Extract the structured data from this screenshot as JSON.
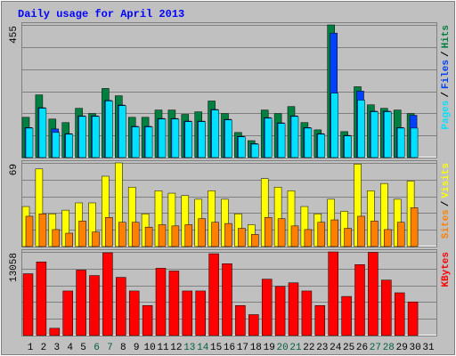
{
  "chart_data": [
    {
      "type": "bar",
      "title": "Daily usage for April 2013",
      "categories": [
        "1",
        "2",
        "3",
        "4",
        "5",
        "6",
        "7",
        "8",
        "9",
        "10",
        "11",
        "12",
        "13",
        "14",
        "15",
        "16",
        "17",
        "18",
        "19",
        "20",
        "21",
        "22",
        "23",
        "24",
        "25",
        "26",
        "27",
        "28",
        "29",
        "30",
        "31"
      ],
      "label_colors": [
        "#000000",
        "#000000",
        "#000000",
        "#000000",
        "#000000",
        "#006040",
        "#006040",
        "#000000",
        "#000000",
        "#000000",
        "#000000",
        "#000000",
        "#006040",
        "#006040",
        "#000000",
        "#000000",
        "#000000",
        "#000000",
        "#000000",
        "#006040",
        "#006040",
        "#000000",
        "#000000",
        "#000000",
        "#000000",
        "#000000",
        "#006040",
        "#006040",
        "#000000",
        "#000000",
        "#000000"
      ],
      "legend_separator": "/",
      "ylim": [
        0,
        455
      ],
      "yticks": [
        455
      ],
      "grid": true,
      "series": [
        {
          "name": "Hits",
          "color": "#008040",
          "values": [
            138,
            215,
            132,
            120,
            169,
            151,
            237,
            212,
            138,
            138,
            163,
            163,
            148,
            157,
            194,
            151,
            86,
            58,
            163,
            151,
            175,
            120,
            95,
            455,
            89,
            243,
            181,
            169,
            163,
            151,
            0
          ]
        },
        {
          "name": "Files",
          "color": "#0040ff",
          "values": [
            103,
            171,
            98,
            82,
            143,
            143,
            196,
            180,
            107,
            107,
            134,
            134,
            125,
            125,
            165,
            131,
            73,
            48,
            137,
            119,
            143,
            103,
            82,
            427,
            76,
            228,
            159,
            159,
            103,
            145,
            0
          ]
        },
        {
          "name": "Pages",
          "color": "#00e0ff",
          "values": [
            101,
            169,
            86,
            80,
            141,
            141,
            194,
            178,
            105,
            105,
            132,
            132,
            123,
            123,
            163,
            129,
            71,
            46,
            135,
            117,
            141,
            101,
            80,
            221,
            74,
            197,
            157,
            157,
            101,
            101,
            0
          ]
        }
      ]
    },
    {
      "type": "bar",
      "ylim": [
        0,
        69
      ],
      "yticks": [
        69
      ],
      "grid": true,
      "series": [
        {
          "name": "Visits",
          "color": "#ffff00",
          "values": [
            33,
            64,
            27,
            30,
            36,
            36,
            58,
            69,
            49,
            27,
            46,
            44,
            42,
            39,
            46,
            39,
            27,
            18,
            56,
            49,
            46,
            33,
            27,
            39,
            29,
            68,
            46,
            52,
            39,
            54,
            0
          ]
        },
        {
          "name": "Sites",
          "color": "#ff8000",
          "values": [
            25,
            27,
            14,
            11,
            21,
            12,
            24,
            20,
            20,
            16,
            18,
            17,
            18,
            23,
            20,
            19,
            15,
            10,
            24,
            23,
            17,
            14,
            20,
            22,
            15,
            25,
            21,
            14,
            20,
            32,
            0
          ]
        }
      ]
    },
    {
      "type": "bar",
      "ylim": [
        0,
        13058
      ],
      "yticks": [
        13058
      ],
      "grid": true,
      "series": [
        {
          "name": "KBytes",
          "color": "#ff0000",
          "values": [
            9652,
            11497,
            1135,
            6955,
            10219,
            9368,
            12916,
            9084,
            6955,
            4684,
            10503,
            10077,
            6955,
            6955,
            12774,
            11213,
            4684,
            3264,
            8800,
            7665,
            8232,
            6955,
            4684,
            13058,
            6103,
            11071,
            12990,
            8658,
            6671,
            5252,
            0
          ]
        }
      ]
    }
  ]
}
